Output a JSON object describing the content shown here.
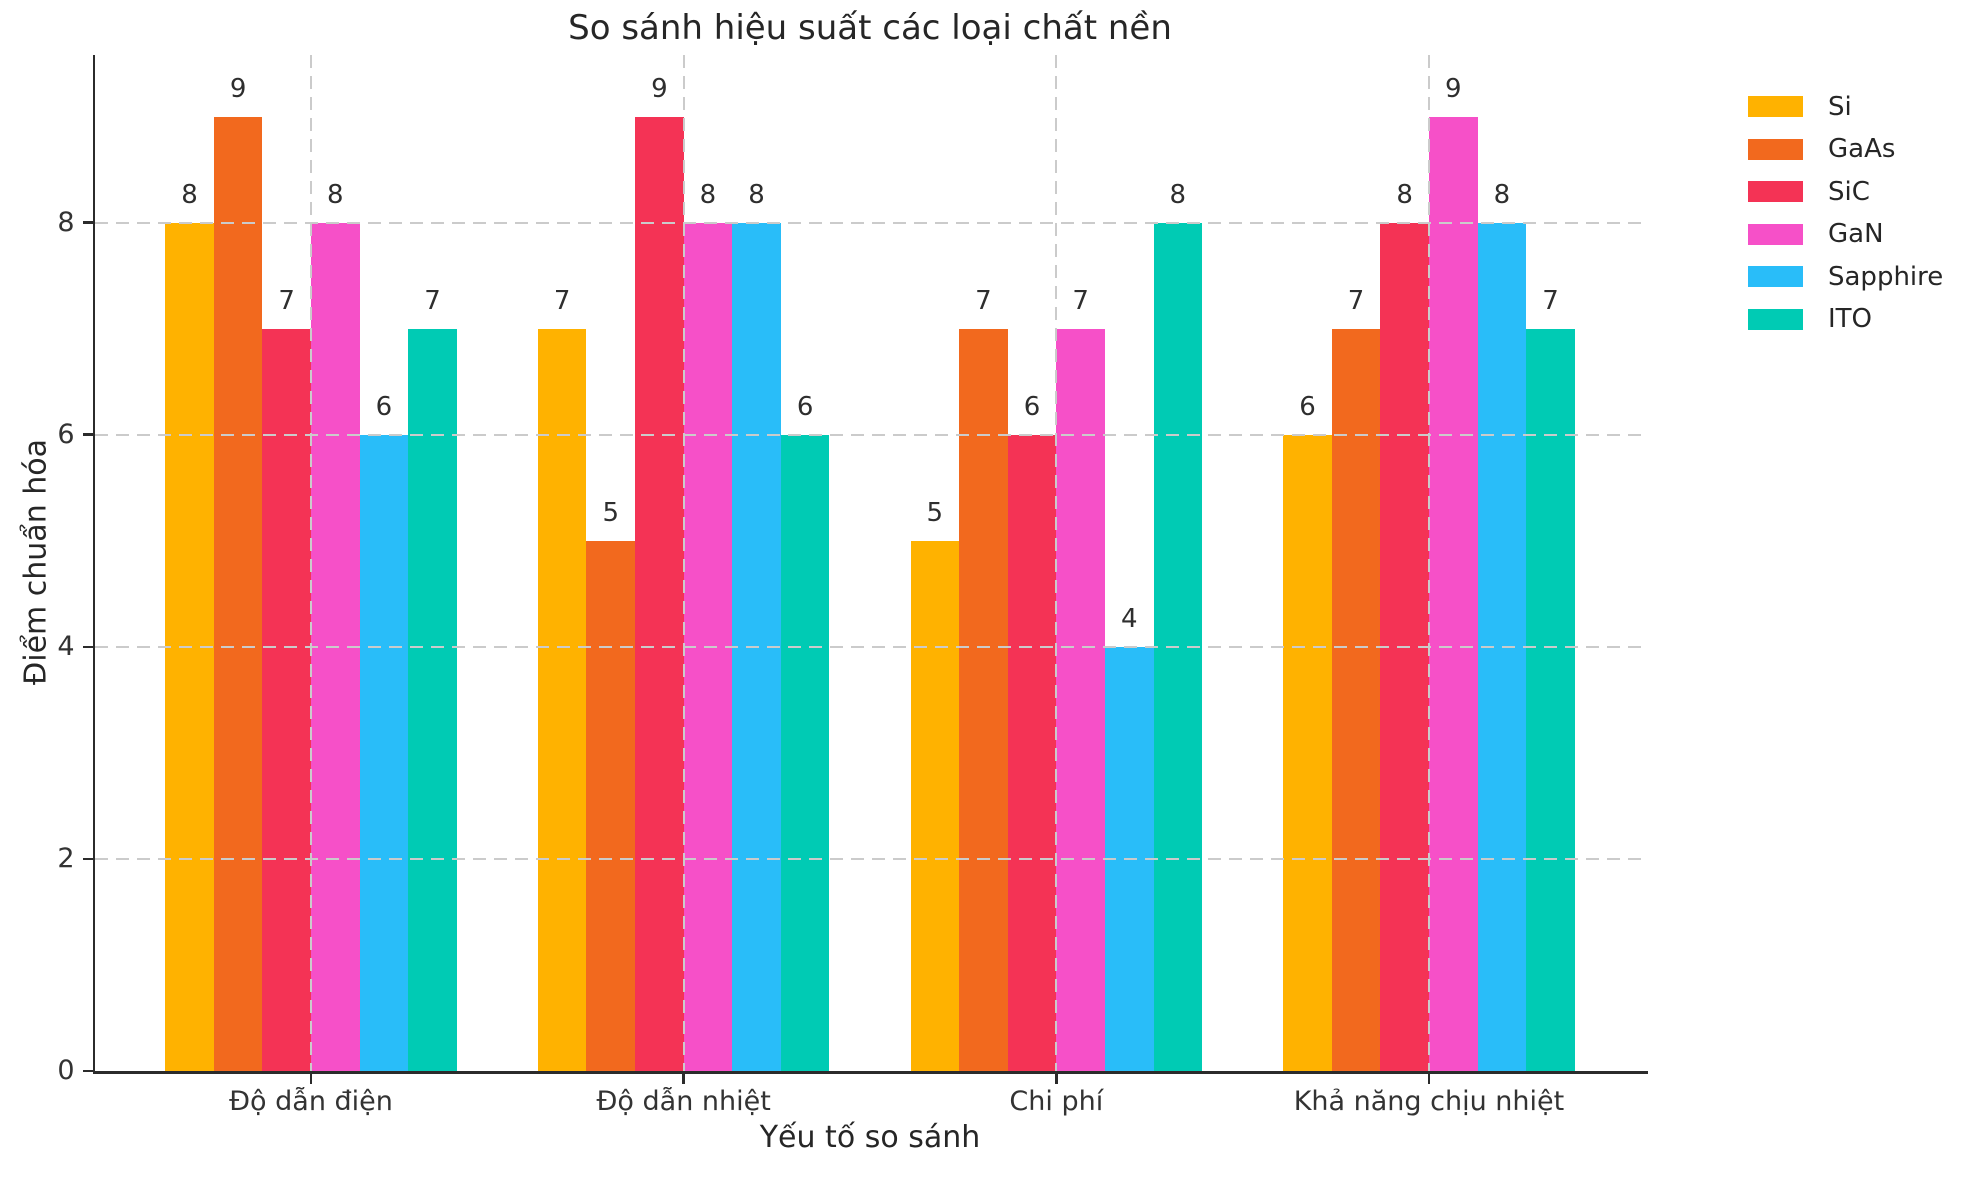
{
  "chart_data": {
    "type": "bar",
    "title": "So sánh hiệu suất các loại chất nền",
    "xlabel": "Yếu tố so sánh",
    "ylabel": "Điểm chuẩn hóa",
    "categories": [
      "Độ dẫn điện",
      "Độ dẫn nhiệt",
      "Chi phí",
      "Khả năng chịu nhiệt"
    ],
    "series": [
      {
        "name": "Si",
        "color": "#FFB200",
        "values": [
          8,
          7,
          5,
          6
        ]
      },
      {
        "name": "GaAs",
        "color": "#F2691E",
        "values": [
          9,
          5,
          7,
          7
        ]
      },
      {
        "name": "SiC",
        "color": "#F43355",
        "values": [
          7,
          9,
          6,
          8
        ]
      },
      {
        "name": "GaN",
        "color": "#F650C8",
        "values": [
          8,
          8,
          7,
          9
        ]
      },
      {
        "name": "Sapphire",
        "color": "#29BDF9",
        "values": [
          6,
          8,
          4,
          8
        ]
      },
      {
        "name": "ITO",
        "color": "#00CBB4",
        "values": [
          7,
          6,
          8,
          7
        ]
      }
    ],
    "yticks": [
      0,
      2,
      4,
      6,
      8
    ],
    "ylim": [
      0,
      9.58
    ],
    "bar_value_labels": true,
    "grid": {
      "horizontal": "dashed",
      "vertical": "dashed-at-category-centers",
      "color": "#cbcbcb",
      "drawn_above_bars": true
    },
    "legend_position": "outside-upper-right",
    "axis_color": "#2b2b2b"
  }
}
